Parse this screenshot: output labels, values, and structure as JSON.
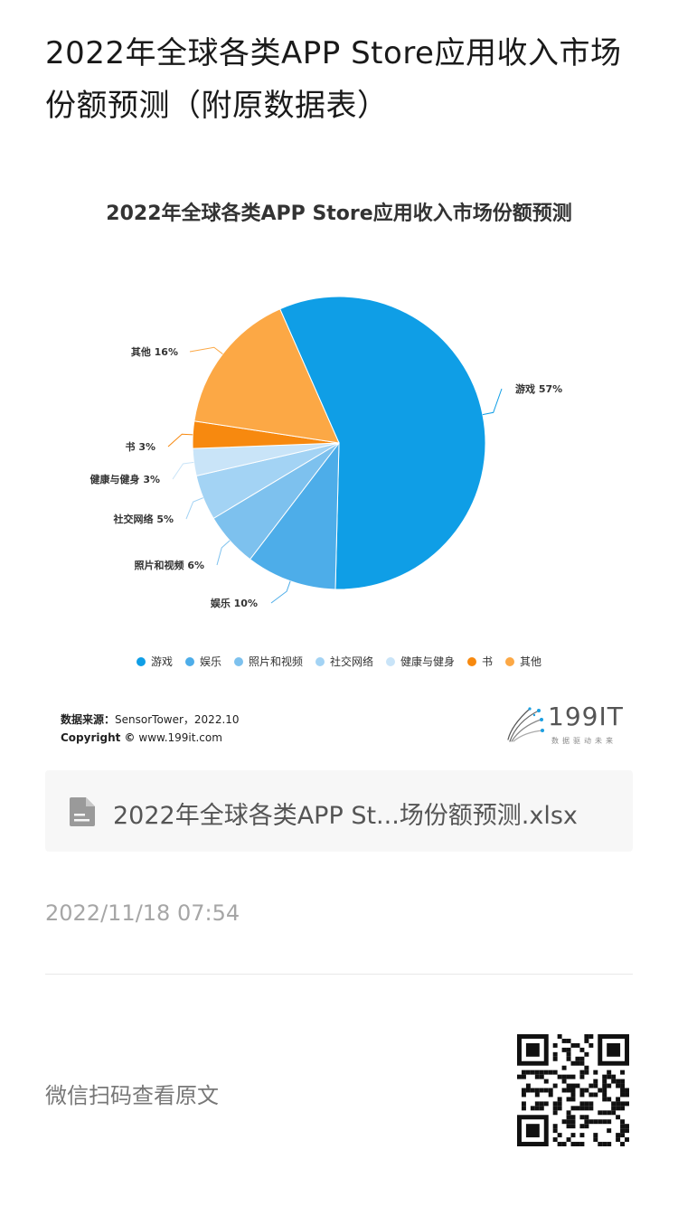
{
  "article": {
    "title": "2022年全球各类APP Store应用收入市场份额预测（附原数据表）"
  },
  "chart_data": {
    "type": "pie",
    "title": "2022年全球各类APP Store应用收入市场份额预测",
    "slices": [
      {
        "name": "游戏",
        "value": 57,
        "label": "游戏 57%",
        "color": "#0f9ee6"
      },
      {
        "name": "娱乐",
        "value": 10,
        "label": "娱乐 10%",
        "color": "#4dade9"
      },
      {
        "name": "照片和视频",
        "value": 6,
        "label": "照片和视频 6%",
        "color": "#7dc1ee"
      },
      {
        "name": "社交网络",
        "value": 5,
        "label": "社交网络 5%",
        "color": "#a3d3f4"
      },
      {
        "name": "健康与健身",
        "value": 3,
        "label": "健康与健身 3%",
        "color": "#c9e4f8"
      },
      {
        "name": "书",
        "value": 3,
        "label": "书 3%",
        "color": "#f7890f"
      },
      {
        "name": "其他",
        "value": 16,
        "label": "其他 16%",
        "color": "#fca845"
      }
    ],
    "legend_position": "bottom"
  },
  "source": {
    "label": "数据来源：",
    "value": "SensorTower，2022.10",
    "copyright_label": "Copyright ©",
    "copyright_value": "www.199it.com"
  },
  "logo": {
    "text": "199IT",
    "subtitle": "数据驱动未来"
  },
  "attachment": {
    "file_name": "2022年全球各类APP St...场份额预测.xlsx",
    "icon": "file-icon"
  },
  "timestamp": "2022/11/18 07:54",
  "footer": {
    "scan_text": "微信扫码查看原文",
    "qr_icon": "qr-code-icon"
  }
}
